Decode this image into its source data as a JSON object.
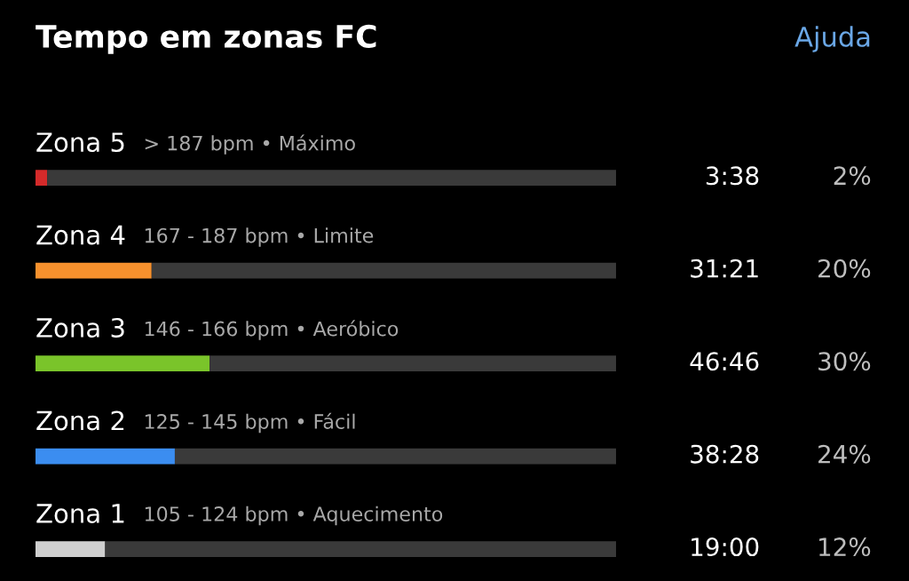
{
  "chart_data": {
    "type": "bar",
    "orientation": "horizontal",
    "stacked": true,
    "title": "Tempo em zonas FC",
    "categories": [
      "Zona 5",
      "Zona 4",
      "Zona 3",
      "Zona 2",
      "Zona 1"
    ],
    "series": [
      {
        "colors": [
          "#d42a2a",
          "#f7912d",
          "#7ac42a",
          "#3b8df0",
          "#cfcfcf"
        ],
        "values": [
          2,
          20,
          30,
          24,
          12
        ],
        "value_labels": [
          "2%",
          "20%",
          "30%",
          "24%",
          "12%"
        ]
      },
      {
        "color": "#3a3a3a",
        "values": [
          98,
          80,
          70,
          76,
          88
        ]
      }
    ],
    "xlim": [
      0,
      100
    ],
    "annotations": [
      "Ajuda",
      "> 187 bpm • Máximo",
      "167 - 187 bpm • Limite",
      "146 - 166 bpm • Aeróbico",
      "125 - 145 bpm • Fácil",
      "105 - 124 bpm • Aquecimento",
      "3:38",
      "31:21",
      "46:46",
      "38:28",
      "19:00"
    ]
  }
}
